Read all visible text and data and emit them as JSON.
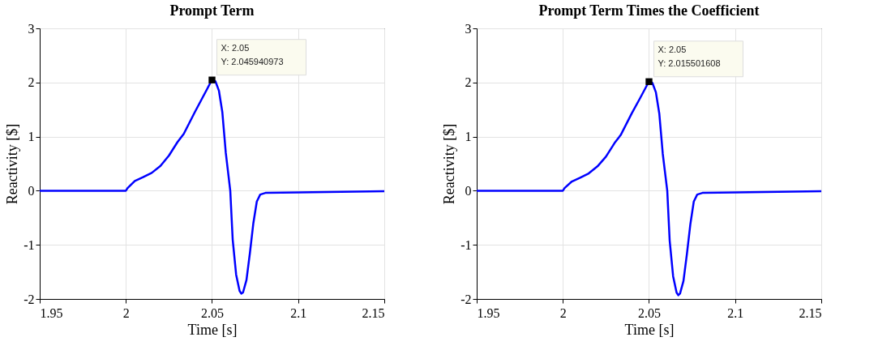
{
  "chart_data": [
    {
      "type": "line",
      "title": "Prompt Term",
      "xlabel": "Time [s]",
      "ylabel": "Reactivity [$]",
      "xlim": [
        1.95,
        2.15
      ],
      "xticks": [
        1.95,
        2,
        2.05,
        2.1,
        2.15
      ],
      "ylim": [
        -2,
        3
      ],
      "yticks": [
        -2,
        -1,
        0,
        1,
        2,
        3
      ],
      "grid": true,
      "series": [
        {
          "color": "#0000ff",
          "x": [
            1.95,
            2.0,
            2.001,
            2.0052,
            2.01,
            2.015,
            2.0201,
            2.025,
            2.03,
            2.0336,
            2.04,
            2.045,
            2.05,
            2.052,
            2.054,
            2.056,
            2.058,
            2.0606,
            2.062,
            2.064,
            2.066,
            2.067,
            2.068,
            2.07,
            2.072,
            2.074,
            2.076,
            2.078,
            2.081,
            2.1,
            2.15
          ],
          "values": [
            0,
            0,
            0.05,
            0.18,
            0.25,
            0.33,
            0.46,
            0.65,
            0.9,
            1.05,
            1.45,
            1.75,
            2.05,
            2.02,
            1.85,
            1.45,
            0.7,
            0,
            -0.9,
            -1.55,
            -1.85,
            -1.9,
            -1.88,
            -1.65,
            -1.15,
            -0.6,
            -0.2,
            -0.07,
            -0.04,
            -0.03,
            -0.01
          ]
        }
      ],
      "annotations": [
        {
          "text": "X: 2.05\nY: 2.045940973",
          "x": 2.05,
          "y": 2.045940973
        }
      ]
    },
    {
      "type": "line",
      "title": "Prompt Term Times the Coefficient",
      "xlabel": "Time [s]",
      "ylabel": "Reactivity [$]",
      "xlim": [
        1.95,
        2.15
      ],
      "xticks": [
        1.95,
        2,
        2.05,
        2.1,
        2.15
      ],
      "ylim": [
        -2,
        3
      ],
      "yticks": [
        -2,
        -1,
        0,
        1,
        2,
        3
      ],
      "grid": true,
      "series": [
        {
          "color": "#0000ff",
          "x": [
            1.95,
            2.0,
            2.001,
            2.0052,
            2.01,
            2.015,
            2.0201,
            2.025,
            2.03,
            2.0336,
            2.04,
            2.045,
            2.05,
            2.052,
            2.054,
            2.056,
            2.058,
            2.0606,
            2.062,
            2.064,
            2.066,
            2.067,
            2.068,
            2.07,
            2.072,
            2.074,
            2.076,
            2.078,
            2.081,
            2.1,
            2.15
          ],
          "values": [
            0,
            0,
            0.05,
            0.17,
            0.24,
            0.32,
            0.45,
            0.63,
            0.88,
            1.03,
            1.43,
            1.72,
            2.02,
            1.99,
            1.82,
            1.42,
            0.68,
            0,
            -0.92,
            -1.58,
            -1.88,
            -1.93,
            -1.9,
            -1.67,
            -1.17,
            -0.62,
            -0.2,
            -0.07,
            -0.04,
            -0.03,
            -0.01
          ]
        }
      ],
      "annotations": [
        {
          "text": "X: 2.05\nY: 2.015501608",
          "x": 2.05,
          "y": 2.015501608
        }
      ]
    }
  ]
}
